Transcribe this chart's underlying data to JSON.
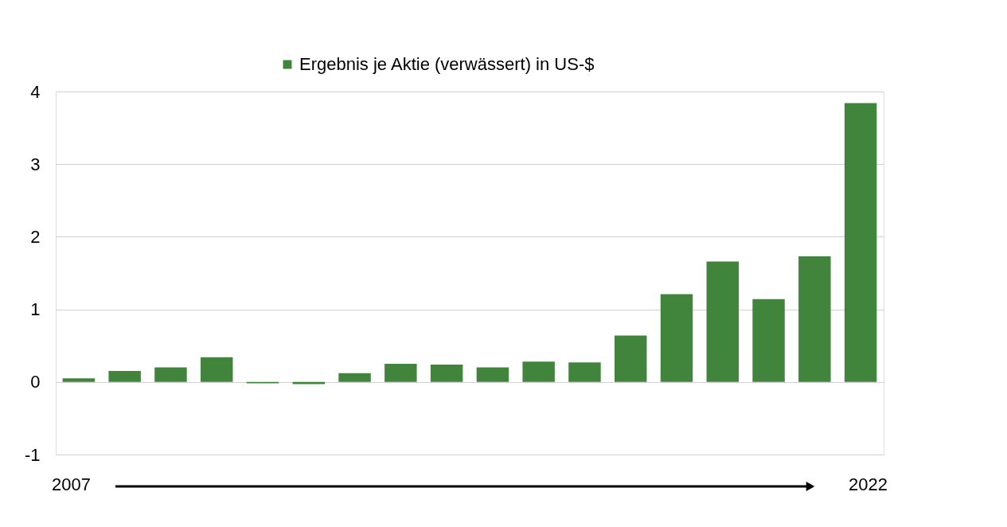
{
  "chart_data": {
    "type": "bar",
    "categories": [
      null,
      null,
      null,
      null,
      null,
      null,
      null,
      null,
      null,
      null,
      null,
      null,
      null,
      null,
      null,
      null,
      null,
      null
    ],
    "series": [
      {
        "name": "Ergebnis je Aktie (verwässert) in US-$",
        "color": "#41843c",
        "values": [
          0.05,
          0.15,
          0.2,
          0.34,
          -0.02,
          -0.03,
          0.12,
          0.25,
          0.24,
          0.2,
          0.28,
          0.27,
          0.64,
          1.21,
          1.66,
          1.14,
          1.73,
          3.84
        ]
      }
    ],
    "ylim": [
      -1,
      4
    ],
    "yticks": [
      -1,
      0,
      1,
      2,
      3,
      4
    ],
    "grid": "y",
    "legend": "top",
    "annotations": [
      "2007",
      "2022"
    ]
  }
}
